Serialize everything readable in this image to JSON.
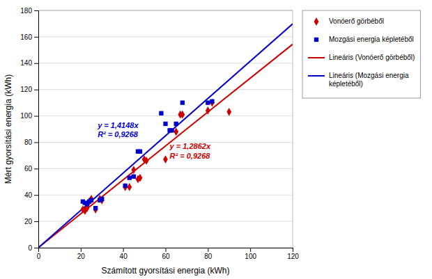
{
  "chart_data": {
    "type": "scatter",
    "xlabel": "Számított gyorsítási energia (kWh)",
    "ylabel": "Mért gyorsítási energia (kWh)",
    "xlim": [
      0,
      120
    ],
    "ylim": [
      0,
      180
    ],
    "xticks": [
      0,
      20,
      40,
      60,
      80,
      100,
      120
    ],
    "yticks": [
      0,
      20,
      40,
      60,
      80,
      100,
      120,
      140,
      160,
      180
    ],
    "grid": "y",
    "legend": "right",
    "series": [
      {
        "name": "Vonóerő görbéből",
        "type": "scatter",
        "marker": "diamond",
        "color": "#cc0000",
        "x": [
          21,
          22,
          23,
          24,
          25,
          27,
          29,
          30,
          41,
          43,
          45,
          47,
          48,
          50,
          51,
          60,
          65,
          67,
          68,
          80,
          82,
          90
        ],
        "values": [
          29,
          28,
          30,
          35,
          37,
          29,
          37,
          36,
          46,
          46,
          59,
          52,
          53,
          67,
          66,
          67,
          88,
          101,
          101,
          104,
          110,
          103
        ]
      },
      {
        "name": "Mozgási energia képletéből",
        "type": "scatter",
        "marker": "square",
        "color": "#0000cc",
        "x": [
          21,
          22,
          23,
          24,
          25,
          27,
          29,
          30,
          41,
          43,
          45,
          47,
          48,
          58,
          60,
          62,
          63,
          65,
          68,
          80,
          82
        ],
        "values": [
          35,
          34,
          33,
          35,
          36,
          30,
          36,
          37,
          47,
          53,
          54,
          73,
          73,
          102,
          94,
          89,
          89,
          94,
          110,
          110,
          111
        ]
      },
      {
        "name": "Lineáris (Vonóerő görbéből)",
        "type": "line",
        "line_style": "solid",
        "color": "#cc0000",
        "x": [
          0,
          120
        ],
        "values": [
          0,
          154.344
        ]
      },
      {
        "name": "Lineáris (Mozgási energia\nképletéből)",
        "type": "line",
        "line_style": "solid",
        "color": "#0000cc",
        "x": [
          0,
          120
        ],
        "values": [
          0,
          169.776
        ]
      }
    ],
    "annotations": [
      {
        "text": "y = 1,4148x\nR² = 0,9268",
        "x": 28,
        "y": 96,
        "color": "#0000cc"
      },
      {
        "text": "y = 1,2862x\nR² = 0,9268",
        "x": 62,
        "y": 80,
        "color": "#cc0000"
      }
    ]
  }
}
